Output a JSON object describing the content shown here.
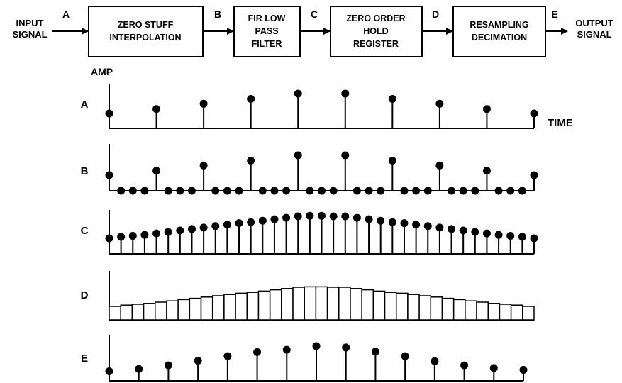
{
  "input_label": [
    "INPUT",
    "SIGNAL"
  ],
  "output_label": [
    "OUTPUT",
    "SIGNAL"
  ],
  "blocks": [
    {
      "lines": [
        "ZERO STUFF",
        "INTERPOLATION"
      ]
    },
    {
      "lines": [
        "FIR LOW",
        "PASS",
        "FILTER"
      ]
    },
    {
      "lines": [
        "ZERO ORDER",
        "HOLD",
        "REGISTER"
      ]
    },
    {
      "lines": [
        "RESAMPLING",
        "DECIMATION"
      ]
    }
  ],
  "node_labels": [
    "A",
    "B",
    "C",
    "D",
    "E"
  ],
  "amp_label": "AMP",
  "time_label": "TIME",
  "plots": {
    "A": {
      "type": "stem",
      "values": [
        0.55,
        0.65,
        0.77,
        0.88,
        1.0,
        1.0,
        0.88,
        0.77,
        0.65,
        0.55
      ]
    },
    "B": {
      "type": "stem",
      "values": [
        0.55,
        0,
        0,
        0,
        0.65,
        0,
        0,
        0,
        0.77,
        0,
        0,
        0,
        0.88,
        0,
        0,
        0,
        1.0,
        0,
        0,
        0,
        1.0,
        0,
        0,
        0,
        0.88,
        0,
        0,
        0,
        0.77,
        0,
        0,
        0,
        0.65,
        0,
        0,
        0,
        0.55
      ]
    },
    "C": {
      "type": "stem",
      "values": [
        0.55,
        0.58,
        0.6,
        0.62,
        0.65,
        0.68,
        0.71,
        0.74,
        0.77,
        0.8,
        0.83,
        0.86,
        0.88,
        0.91,
        0.94,
        0.97,
        1.0,
        1.01,
        1.01,
        1.0,
        1.0,
        0.97,
        0.94,
        0.91,
        0.88,
        0.86,
        0.83,
        0.8,
        0.77,
        0.74,
        0.71,
        0.68,
        0.65,
        0.62,
        0.6,
        0.58,
        0.55
      ]
    },
    "D": {
      "type": "hold",
      "values": [
        0.55,
        0.58,
        0.6,
        0.62,
        0.65,
        0.68,
        0.71,
        0.74,
        0.77,
        0.8,
        0.83,
        0.86,
        0.88,
        0.91,
        0.94,
        0.97,
        1.0,
        1.01,
        1.01,
        1.0,
        1.0,
        0.97,
        0.94,
        0.91,
        0.88,
        0.86,
        0.83,
        0.8,
        0.77,
        0.74,
        0.71,
        0.68,
        0.65,
        0.62,
        0.6,
        0.58,
        0.55
      ]
    },
    "E": {
      "type": "stem",
      "values": [
        0.45,
        0.5,
        0.58,
        0.68,
        0.78,
        0.87,
        0.92,
        1.0,
        0.97,
        0.88,
        0.78,
        0.67,
        0.58,
        0.52,
        0.48
      ]
    }
  }
}
